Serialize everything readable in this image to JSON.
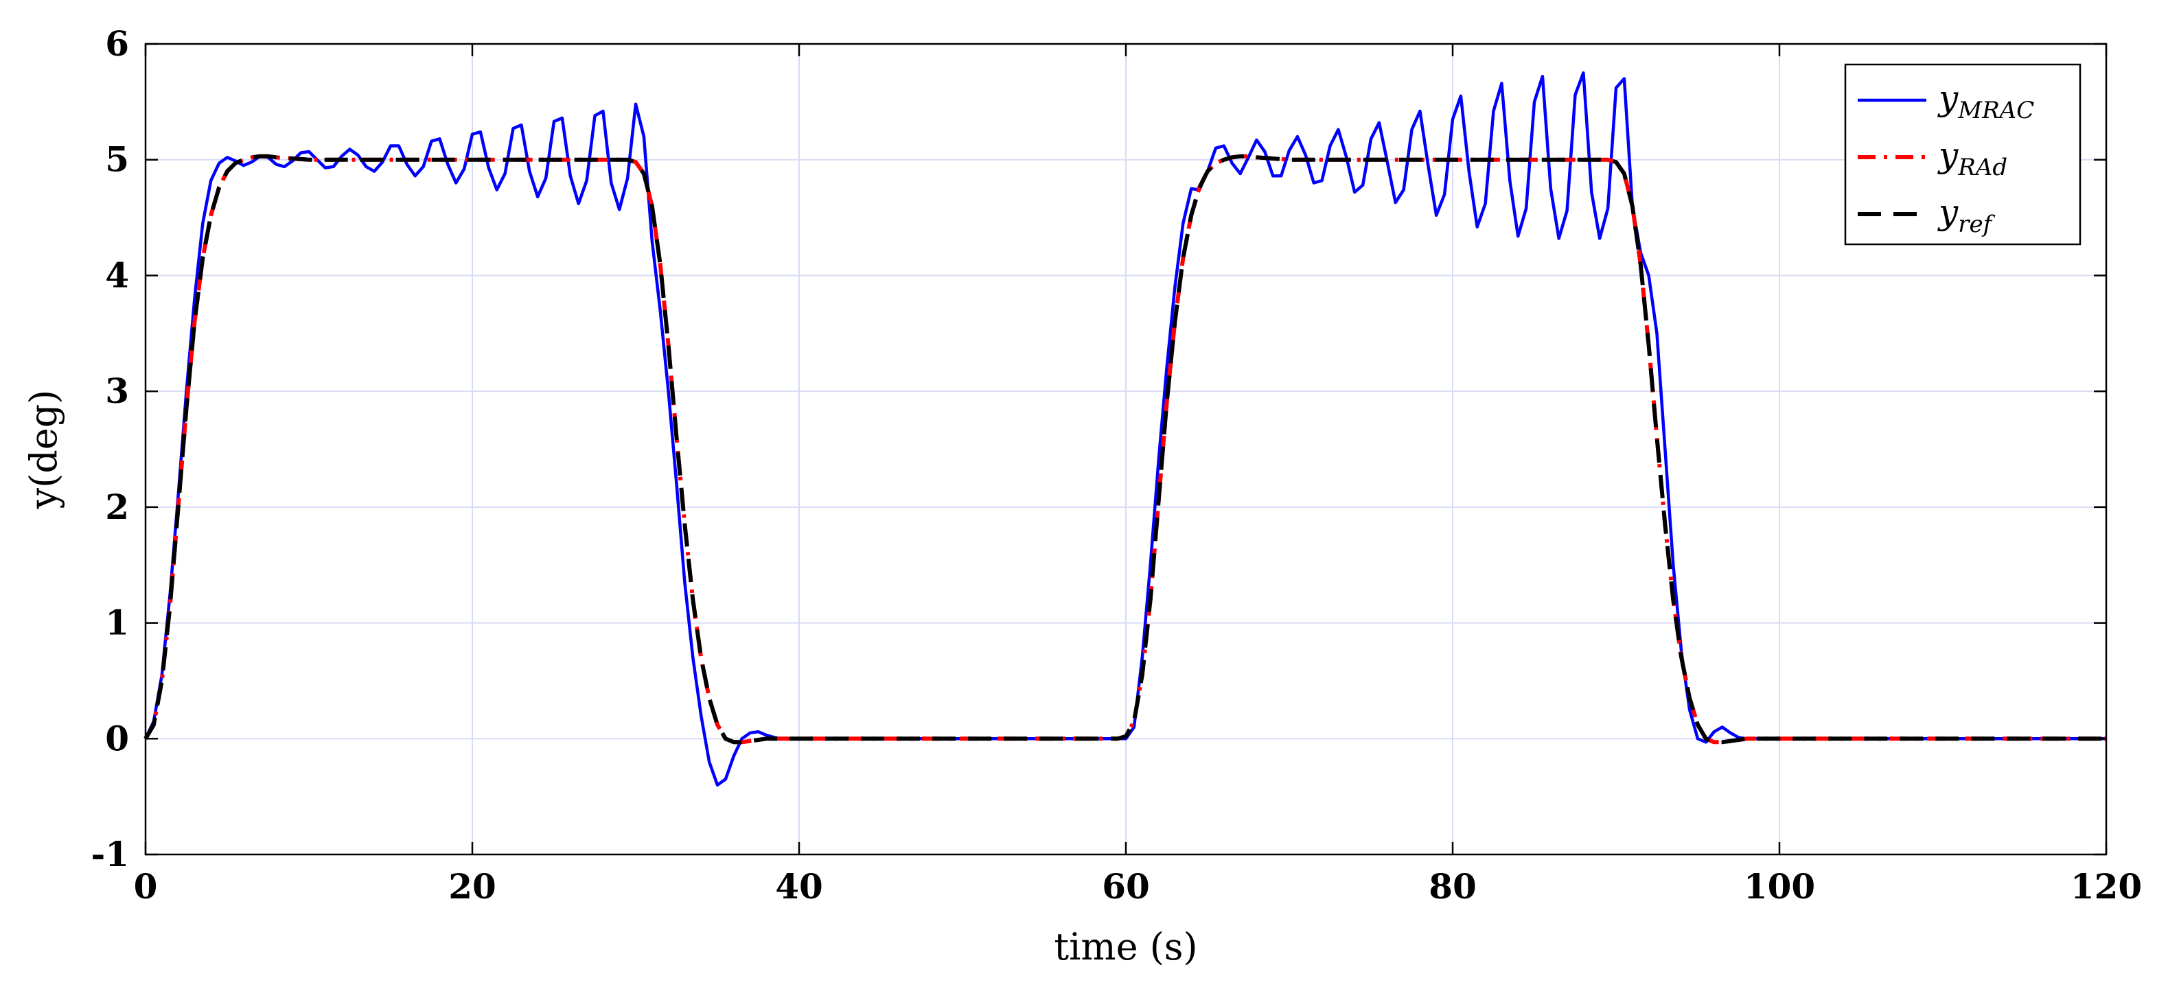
{
  "chart_data": {
    "type": "line",
    "xlabel": "time (s)",
    "ylabel": "y(deg)",
    "xlim": [
      0,
      120
    ],
    "ylim": [
      -1,
      6
    ],
    "xticks": [
      0,
      20,
      40,
      60,
      80,
      100,
      120
    ],
    "yticks": [
      -1,
      0,
      1,
      2,
      3,
      4,
      5,
      6
    ],
    "grid": true,
    "legend_position": "top-right",
    "legend": [
      {
        "base": "y",
        "sub": "MRAC",
        "color": "#0000ff",
        "style": "solid"
      },
      {
        "base": "y",
        "sub": "RAd",
        "color": "#ff0000",
        "style": "dash-dot"
      },
      {
        "base": "y",
        "sub": "ref",
        "color": "#000000",
        "style": "dashed"
      }
    ],
    "series": [
      {
        "name": "y_MRAC",
        "color": "#0000ff",
        "style": "solid",
        "x": [
          0,
          0.5,
          1,
          1.5,
          2,
          2.5,
          3,
          3.5,
          4,
          4.5,
          5,
          5.5,
          6,
          6.5,
          7,
          7.5,
          8,
          8.5,
          9,
          9.5,
          10,
          10.5,
          11,
          11.5,
          12,
          12.5,
          13,
          13.5,
          14,
          14.5,
          15,
          15.5,
          16,
          16.5,
          17,
          17.5,
          18,
          18.5,
          19,
          19.5,
          20,
          20.5,
          21,
          21.5,
          22,
          22.5,
          23,
          23.5,
          24,
          24.5,
          25,
          25.5,
          26,
          26.5,
          27,
          27.5,
          28,
          28.5,
          29,
          29.5,
          30,
          30.5,
          31,
          31.5,
          32,
          32.5,
          33,
          33.5,
          34,
          34.5,
          35,
          35.5,
          36,
          36.5,
          37,
          37.5,
          38,
          38.5,
          39,
          40,
          45,
          50,
          55,
          59.5,
          60,
          60.5,
          61,
          61.5,
          62,
          62.5,
          63,
          63.5,
          64,
          64.5,
          65,
          65.5,
          66,
          66.5,
          67,
          67.5,
          68,
          68.5,
          69,
          69.5,
          70,
          70.5,
          71,
          71.5,
          72,
          72.5,
          73,
          73.5,
          74,
          74.5,
          75,
          75.5,
          76,
          76.5,
          77,
          77.5,
          78,
          78.5,
          79,
          79.5,
          80,
          80.5,
          81,
          81.5,
          82,
          82.5,
          83,
          83.5,
          84,
          84.5,
          85,
          85.5,
          86,
          86.5,
          87,
          87.5,
          88,
          88.5,
          89,
          89.5,
          90,
          90.5,
          91,
          91.5,
          92,
          92.5,
          93,
          93.5,
          94,
          94.5,
          95,
          95.5,
          96,
          96.5,
          97,
          97.5,
          98,
          99,
          100,
          105,
          110,
          115,
          120
        ],
        "y": [
          0,
          0.15,
          0.55,
          1.25,
          2.1,
          3.0,
          3.8,
          4.45,
          4.82,
          4.97,
          5.02,
          4.99,
          4.95,
          4.98,
          5.03,
          5.02,
          4.96,
          4.94,
          4.99,
          5.06,
          5.07,
          5.0,
          4.93,
          4.94,
          5.03,
          5.09,
          5.04,
          4.94,
          4.9,
          4.98,
          5.12,
          5.12,
          4.96,
          4.86,
          4.94,
          5.16,
          5.18,
          4.96,
          4.8,
          4.92,
          5.22,
          5.24,
          4.93,
          4.74,
          4.88,
          5.27,
          5.3,
          4.9,
          4.68,
          4.84,
          5.33,
          5.36,
          4.86,
          4.62,
          4.82,
          5.38,
          5.42,
          4.8,
          4.57,
          4.84,
          5.48,
          5.2,
          4.3,
          3.7,
          3.0,
          2.2,
          1.35,
          0.7,
          0.2,
          -0.2,
          -0.4,
          -0.35,
          -0.15,
          0.0,
          0.05,
          0.06,
          0.03,
          0.01,
          0.0,
          0.0,
          0.0,
          0.0,
          0.0,
          0.0,
          0.0,
          0.1,
          0.7,
          1.5,
          2.4,
          3.2,
          3.9,
          4.45,
          4.75,
          4.74,
          4.9,
          5.1,
          5.12,
          4.97,
          4.88,
          5.02,
          5.17,
          5.07,
          4.86,
          4.86,
          5.08,
          5.2,
          5.04,
          4.8,
          4.82,
          5.12,
          5.26,
          5.02,
          4.72,
          4.78,
          5.18,
          5.32,
          4.98,
          4.63,
          4.74,
          5.26,
          5.42,
          4.95,
          4.52,
          4.7,
          5.35,
          5.55,
          4.9,
          4.42,
          4.62,
          5.42,
          5.66,
          4.82,
          4.34,
          4.58,
          5.5,
          5.72,
          4.75,
          4.32,
          4.56,
          5.56,
          5.75,
          4.72,
          4.32,
          4.58,
          5.62,
          5.7,
          4.6,
          4.2,
          4.0,
          3.5,
          2.5,
          1.5,
          0.75,
          0.25,
          0.0,
          -0.03,
          0.06,
          0.1,
          0.05,
          0.01,
          0.0,
          0.0,
          0.0,
          0.0,
          0.0,
          0.0,
          0.0
        ]
      },
      {
        "name": "y_RAd",
        "color": "#ff0000",
        "style": "dash-dot",
        "x": [
          0,
          0.5,
          1,
          1.5,
          2,
          2.5,
          3,
          3.5,
          4,
          4.5,
          5,
          5.5,
          6,
          6.5,
          7,
          7.5,
          8,
          9,
          10,
          12,
          15,
          20,
          25,
          29.5,
          30,
          30.5,
          31,
          31.5,
          32,
          32.5,
          33,
          33.5,
          34,
          34.5,
          35,
          35.5,
          36,
          36.5,
          37,
          37.5,
          38,
          39,
          40,
          45,
          50,
          55,
          59.5,
          60,
          60.5,
          61,
          61.5,
          62,
          62.5,
          63,
          63.5,
          64,
          64.5,
          65,
          65.5,
          66,
          66.5,
          67,
          67.5,
          68,
          69,
          70,
          72,
          75,
          80,
          85,
          89.5,
          90,
          90.5,
          91,
          91.5,
          92,
          92.5,
          93,
          93.5,
          94,
          94.5,
          95,
          95.5,
          96,
          96.5,
          97,
          97.5,
          98,
          99,
          100,
          105,
          110,
          115,
          120
        ],
        "y": [
          0,
          0.12,
          0.5,
          1.15,
          2.0,
          2.85,
          3.6,
          4.15,
          4.52,
          4.76,
          4.9,
          4.97,
          5.0,
          5.02,
          5.03,
          5.03,
          5.02,
          5.01,
          5.0,
          5.0,
          5.0,
          5.0,
          5.0,
          5.0,
          4.98,
          4.88,
          4.6,
          4.1,
          3.4,
          2.6,
          1.85,
          1.2,
          0.7,
          0.35,
          0.12,
          0.0,
          -0.03,
          -0.03,
          -0.02,
          -0.01,
          0.0,
          0.0,
          0.0,
          0.0,
          0.0,
          0.0,
          0.0,
          0.02,
          0.15,
          0.55,
          1.2,
          2.05,
          2.9,
          3.6,
          4.15,
          4.52,
          4.76,
          4.9,
          4.97,
          5.0,
          5.02,
          5.03,
          5.03,
          5.02,
          5.01,
          5.0,
          5.0,
          5.0,
          5.0,
          5.0,
          5.0,
          4.98,
          4.88,
          4.6,
          4.1,
          3.4,
          2.6,
          1.85,
          1.2,
          0.7,
          0.35,
          0.12,
          0.0,
          -0.03,
          -0.03,
          -0.02,
          -0.01,
          0.0,
          0.0,
          0.0,
          0.0,
          0.0,
          0.0,
          0.0
        ]
      },
      {
        "name": "y_ref",
        "color": "#000000",
        "style": "dashed",
        "x": [
          0,
          0.5,
          1,
          1.5,
          2,
          2.5,
          3,
          3.5,
          4,
          4.5,
          5,
          5.5,
          6,
          6.5,
          7,
          7.5,
          8,
          9,
          10,
          12,
          15,
          20,
          25,
          29.5,
          30,
          30.5,
          31,
          31.5,
          32,
          32.5,
          33,
          33.5,
          34,
          34.5,
          35,
          35.5,
          36,
          36.5,
          37,
          37.5,
          38,
          39,
          40,
          45,
          50,
          55,
          59.5,
          60,
          60.5,
          61,
          61.5,
          62,
          62.5,
          63,
          63.5,
          64,
          64.5,
          65,
          65.5,
          66,
          66.5,
          67,
          67.5,
          68,
          69,
          70,
          72,
          75,
          80,
          85,
          89.5,
          90,
          90.5,
          91,
          91.5,
          92,
          92.5,
          93,
          93.5,
          94,
          94.5,
          95,
          95.5,
          96,
          96.5,
          97,
          97.5,
          98,
          99,
          100,
          105,
          110,
          115,
          120
        ],
        "y": [
          0,
          0.12,
          0.5,
          1.15,
          2.0,
          2.85,
          3.6,
          4.15,
          4.52,
          4.76,
          4.9,
          4.97,
          5.0,
          5.02,
          5.03,
          5.03,
          5.02,
          5.01,
          5.0,
          5.0,
          5.0,
          5.0,
          5.0,
          5.0,
          4.98,
          4.88,
          4.6,
          4.1,
          3.4,
          2.6,
          1.85,
          1.2,
          0.7,
          0.35,
          0.12,
          0.0,
          -0.03,
          -0.03,
          -0.02,
          -0.01,
          0.0,
          0.0,
          0.0,
          0.0,
          0.0,
          0.0,
          0.0,
          0.02,
          0.15,
          0.55,
          1.2,
          2.05,
          2.9,
          3.6,
          4.15,
          4.52,
          4.76,
          4.9,
          4.97,
          5.0,
          5.02,
          5.03,
          5.03,
          5.02,
          5.01,
          5.0,
          5.0,
          5.0,
          5.0,
          5.0,
          5.0,
          4.98,
          4.88,
          4.6,
          4.1,
          3.4,
          2.6,
          1.85,
          1.2,
          0.7,
          0.35,
          0.12,
          0.0,
          -0.03,
          -0.03,
          -0.02,
          -0.01,
          0.0,
          0.0,
          0.0,
          0.0,
          0.0,
          0.0,
          0.0
        ]
      }
    ]
  }
}
